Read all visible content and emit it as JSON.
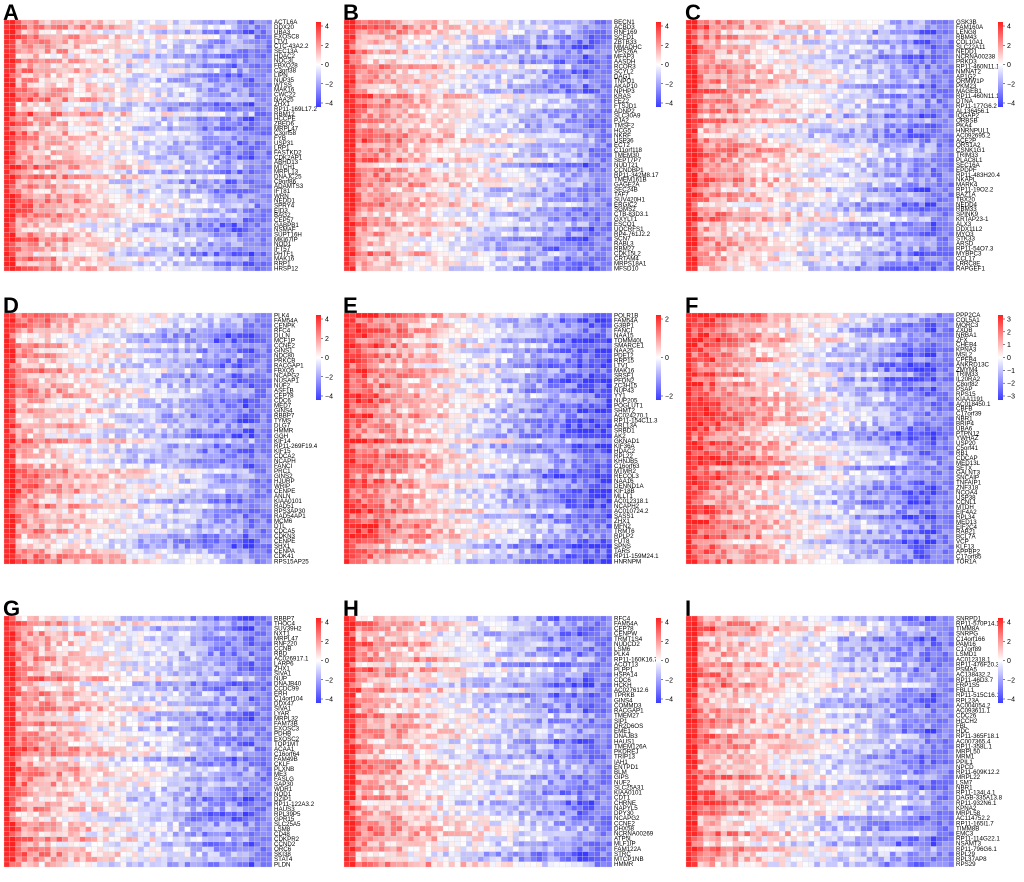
{
  "figure": {
    "colors": {
      "low": "#3b3bff",
      "mid": "#ffffff",
      "high": "#ff2020",
      "grid": "#d8d8d8"
    }
  },
  "chart_data": [
    {
      "type": "heatmap",
      "panel": "A",
      "genes": [
        "ACTL6A",
        "DDX20",
        "UBA3",
        "EXOSC8",
        "LTV1",
        "CTC-43A2.2",
        "SEC13A",
        "HDAC2",
        "NOC3L",
        "FBXO28",
        "C3orf38",
        "LIPN",
        "NUP35",
        "WTSS",
        "MAK16",
        "CWC22",
        "NAA25",
        "ZHX1",
        "RP11-169L17.2",
        "RBM12",
        "HCCPE",
        "ZBED6",
        "MRPL47",
        "C3orf58",
        "FYB",
        "USP31",
        "LRP1",
        "FASTKD2",
        "CDK2AP1",
        "ABHD13",
        "MTCH1",
        "MRPL13",
        "DNAJC25",
        "C9orf86",
        "ADAMTS3",
        "IFT81",
        "WRN",
        "NEDD1",
        "SPRY4",
        "EID3",
        "BAG2",
        "CEP57",
        "GABPB1",
        "NSMAF",
        "SUPT16H",
        "MKI67IP",
        "NOD1",
        "IFT57",
        "PHTF1",
        "MAK16",
        "RRP1",
        "HRSP12"
      ],
      "colorbar_ticks": [
        "4",
        "2",
        "0",
        "−2",
        "−4"
      ]
    },
    {
      "type": "heatmap",
      "panel": "B",
      "genes": [
        "BECN1",
        "ACBD3",
        "RNF169",
        "SCFD1",
        "ZBTB33",
        "MMADHC",
        "VPS26A",
        "MFAP3",
        "AASDH",
        "RCOR3",
        "SCYL2",
        "DAG1",
        "TNPO1",
        "AKAP10",
        "NPHP3",
        "KRAS",
        "FEZ2",
        "FTSJD1",
        "ADNP2",
        "SLC30A9",
        "PJA2",
        "TMSF2",
        "HCG5",
        "NKRF",
        "USP36",
        "ECT2",
        "C11orf118",
        "TMEM30",
        "SEPT7P7",
        "NUDT21",
        "CCNDBP1",
        "RP11-342M8.17",
        "TMEM161B",
        "GAGE2A",
        "SEC24B",
        "TAF7",
        "SUV420H1",
        "ERGIC2",
        "SGMS2",
        "CTB-83D3.1",
        "GXYLT1",
        "ESCO1",
        "UQCRFS1",
        "RP4-761J2.2",
        "SCN7",
        "RABL3",
        "RBM27",
        "CDK15L2",
        "CRTAM4",
        "MRPS18A1",
        "MFSD10"
      ],
      "colorbar_ticks": [
        "4",
        "2",
        "0",
        "−2",
        "−4"
      ]
    },
    {
      "type": "heatmap",
      "panel": "C",
      "genes": [
        "GSK3B",
        "FAM160A",
        "LENG8",
        "RBM43",
        "COL10A1",
        "SLC22A11",
        "NEDD1",
        "NCRNA00238",
        "PRKD3",
        "RP11-460N11.1",
        "NMNAT2",
        "AP1G2",
        "ORMW1P",
        "PKM23",
        "MAGEB1",
        "RP11-460N11.1",
        "DTNA",
        "RP11-177G6.2",
        "AL136456.1",
        "IQGAP2",
        "ORBSB",
        "PKA4",
        "HNRNPUL1",
        "AC092695.2",
        "ACE2P",
        "ORS1A2",
        "CSNK1G1",
        "TRIM33",
        "PLAC8L1",
        "SEC16A",
        "EPDPF",
        "RP11-483H20.4",
        "NKAPL",
        "MARK4",
        "RP11-19O2.2",
        "BAZ1A",
        "TBX20",
        "NEDD4",
        "RBM33",
        "SPINK9",
        "KRTAP23-1",
        "ALX3",
        "DDX11L2",
        "MYO3",
        "STK33",
        "ARSD",
        "RP11-54O7.3",
        "MYBPC3",
        "CCL17",
        "LRRC8E",
        "RAPGEF1"
      ],
      "colorbar_ticks": [
        "4",
        "2",
        "0",
        "−2",
        "−4"
      ]
    },
    {
      "type": "heatmap",
      "panel": "D",
      "genes": [
        "PLK4",
        "FAM54A",
        "CENPK",
        "RFC4",
        "DLLN",
        "MCF1P",
        "CCNE2",
        "GINS1",
        "NDC80",
        "PRKCB",
        "RACGAP1",
        "FBXO5",
        "NCAPG2",
        "NUSAP1",
        "NUF2",
        "ASF1B",
        "CEP78",
        "CDC6",
        "MED7",
        "GINS4",
        "RBBP7",
        "TYMS",
        "DLG7",
        "HMMR",
        "GGH",
        "KIF14",
        "RP11-269F19.4",
        "KIF15",
        "CDCA2",
        "NCAPH",
        "FANCI",
        "PRC1",
        "GINS2",
        "HJURP",
        "WRIP",
        "CENPE",
        "ANLN",
        "KIAA0101",
        "RAD51",
        "RPS3AP30",
        "RAD54AP1",
        "MCM6",
        "DTL",
        "CDCA5",
        "CDKN3",
        "CENPE",
        "SHX1",
        "CENPA",
        "CDK41",
        "RPS15AP25"
      ],
      "colorbar_ticks": [
        "4",
        "2",
        "0",
        "−2",
        "−4"
      ]
    },
    {
      "type": "heatmap",
      "panel": "E",
      "genes": [
        "POLR1B",
        "FAM54A",
        "G3BP1",
        "FANCI",
        "NAA15",
        "TOMM40L",
        "SMARCE1",
        "NAA25",
        "PDE12",
        "RRP15",
        "LTV1",
        "MAK16",
        "SRSF1",
        "PFDN2",
        "ZC3H15",
        "NUP43",
        "YY1",
        "NUP205",
        "POGLUT1",
        "SHMT2",
        "AC024270.1",
        "RP11-154C11.3",
        "ARL13A",
        "SRBD1",
        "AK2",
        "GKNAD1",
        "KIF36A",
        "HDAC2",
        "RPL22",
        "KHNJB5",
        "C16orf63",
        "MTMR2",
        "RECQL3",
        "NAA16",
        "DENND1A",
        "KIF18B",
        "MLLT1",
        "AC012318.1",
        "NCAPH2",
        "AC010724.2",
        "SASS1",
        "ZHX1",
        "MFN2",
        "TRMT6",
        "RPLP2",
        "FUT8",
        "SPNS",
        "TARS",
        "RP11-159M24.1",
        "HNRNPM"
      ],
      "colorbar_ticks": [
        "2",
        "0",
        "−2"
      ]
    },
    {
      "type": "heatmap",
      "panel": "F",
      "genes": [
        "PPP2CA",
        "COL5A1",
        "MORC3",
        "ZXDB",
        "NRBA1",
        "ZFX",
        "CHEB4",
        "KPNA3",
        "MSL2",
        "CPEB4",
        "ANKRD13C",
        "ZMYM4",
        "TRIM33",
        "IL20RA2",
        "C8orf82",
        "PSAP",
        "RPS15",
        "KIAA1191",
        "AC018450.1",
        "CBFB",
        "C17orf39",
        "NBR1",
        "BRIP4",
        "UBA6",
        "PTPN12",
        "YWHAZ",
        "USP20",
        "C5orf41",
        "RB1",
        "CDCAP",
        "MED13L",
        "SETX",
        "GALNT3",
        "SNCAIP",
        "TNFAIP1",
        "ZNF318",
        "NCOA4",
        "USP38",
        "CCNL1",
        "MTDH",
        "EIF4A2",
        "RPL34",
        "MED13",
        "EIF2C4",
        "RAB21",
        "BCL7A",
        "VCP",
        "KLF13",
        "APPBP2",
        "C17orf85",
        "TOR1A"
      ],
      "colorbar_ticks": [
        "3",
        "2",
        "1",
        "0",
        "−1",
        "−2",
        "−3"
      ]
    },
    {
      "type": "heatmap",
      "panel": "G",
      "genes": [
        "RBBP7",
        "THOC4",
        "SUV39H2",
        "NXT1",
        "MRPL47",
        "RNF220",
        "CCNB",
        "RBD",
        "AC026917.1",
        "LARP6",
        "ZHX1",
        "SIVA1",
        "NUP",
        "DNAJB40",
        "CCDC99",
        "ERH",
        "C14orf104",
        "DDX47",
        "SIVA1",
        "LYAR",
        "MRPL32",
        "FAM73B",
        "EXOSC3",
        "PDHB",
        "EXOSC2",
        "TOP1MT",
        "ACAA1",
        "C16orf64",
        "FAM49B",
        "CKLF",
        "PLXNB",
        "ME3",
        "FASLG",
        "SAP30",
        "WDR1",
        "NOD1",
        "DZIP1",
        "RP11-122A3.2",
        "HAUS3",
        "RPL39P5",
        "GPR15",
        "SLC25A5",
        "LSM8",
        "CD48",
        "CDKPR2",
        "CCND2",
        "ORC6",
        "SKI38",
        "STAT4",
        "PLDN"
      ],
      "colorbar_ticks": [
        "4",
        "2",
        "0",
        "−2",
        "−4"
      ]
    },
    {
      "type": "heatmap",
      "panel": "H",
      "genes": [
        "RFC4",
        "FAM54A",
        "CEP78",
        "CENPW",
        "TRMT1S4",
        "NUDCD2",
        "LSM6",
        "PLK4",
        "RP11-160K16.7",
        "ACOT13",
        "PLPP1",
        "HSPA14",
        "CDC6",
        "HCKH",
        "AC027612.6",
        "TPRKB",
        "GINS4",
        "COMMD3",
        "RACGAP1",
        "TMEM27",
        "SIP1",
        "DR2D6OS",
        "EME1",
        "DNAJB3",
        "HAUS1",
        "TMEM126A",
        "PKDREJ",
        "TRIP13",
        "IAH1",
        "ENTPD1",
        "BLM",
        "GIPS",
        "NUF2",
        "SLC25A31",
        "KIAA0101",
        "CDT1",
        "CHRNE",
        "NAPYL5",
        "DPY30",
        "NCAPG2",
        "CCNE2",
        "DHX58",
        "NCRNA00269",
        "ATP5L",
        "MLF1IP",
        "FAM122A",
        "STRC",
        "MTCP1NB",
        "HMMR"
      ],
      "colorbar_ticks": [
        "4",
        "2",
        "0",
        "−2",
        "−4"
      ]
    },
    {
      "type": "heatmap",
      "panel": "I",
      "genes": [
        "SNRPD1",
        "RP11-570P14.1",
        "TIMM8A",
        "SNRPG",
        "C14orf166",
        "PAM16",
        "C17orf89",
        "LSMD1",
        "AC012318.1",
        "RP11-476F20.3",
        "PSMA5",
        "AC138432.2",
        "RP11-46D3.7",
        "FRP1S5",
        "FBLL1",
        "RP11-515C16.1",
        "RPL23A",
        "AC004054.2",
        "AC093611.1",
        "CDC26",
        "HCCH2",
        "FBL",
        "HDC",
        "RP11-365F18.1",
        "AC007365.4",
        "RP11-358L.1",
        "MRPL50",
        "MRM1",
        "PPIL1",
        "NPCD",
        "RP11-609K12.2",
        "MRPL22",
        "LSM7",
        "NBR1",
        "RP11-134L4.1",
        "DAGB-335A13.8",
        "RP11-932N6.1",
        "KPNA2",
        "MRPL58",
        "AC114752.2",
        "RP11-165I1.7",
        "TIMM8B",
        "EMC3",
        "RP11-114G22.1",
        "NSAMT3",
        "RP11-796G6.1",
        "RPL29",
        "RPL37AP8",
        "RPS29"
      ],
      "colorbar_ticks": [
        "4",
        "2",
        "0",
        "−2",
        "−4"
      ]
    }
  ]
}
